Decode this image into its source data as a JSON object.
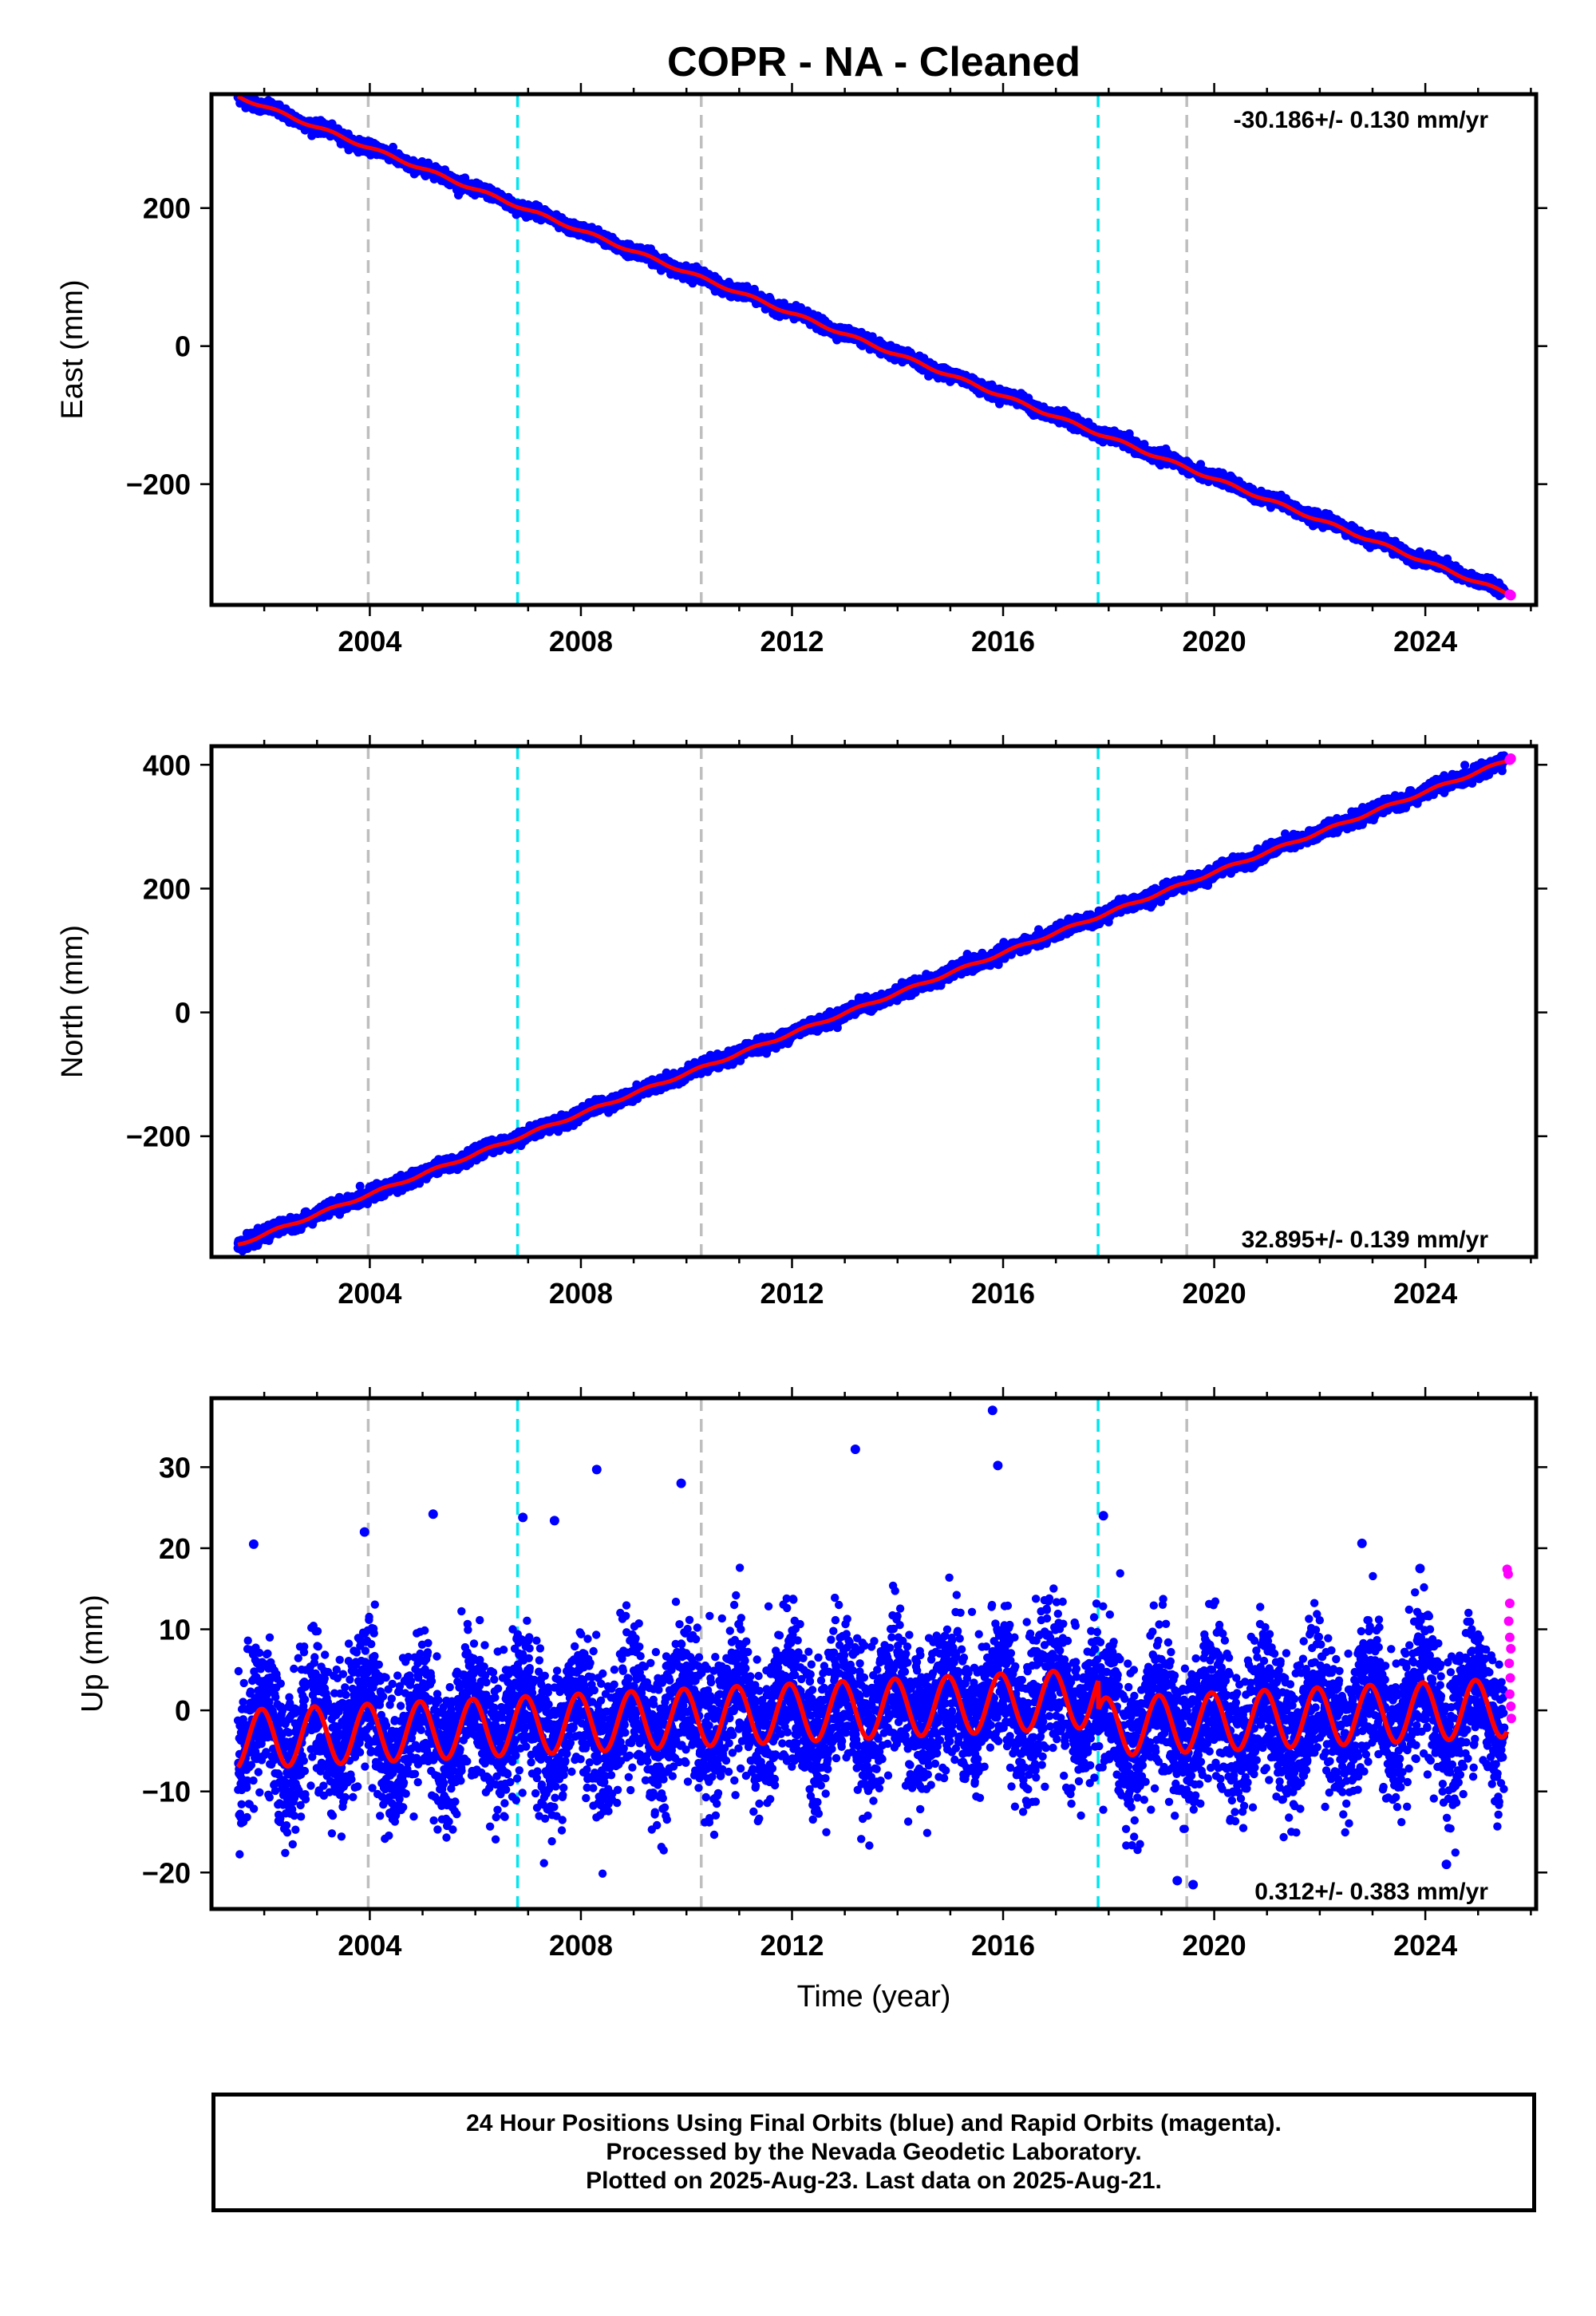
{
  "title": "COPR  - NA - Cleaned",
  "caption": [
    "24 Hour Positions Using Final Orbits (blue) and Rapid Orbits (magenta).",
    "Processed by the Nevada Geodetic Laboratory.",
    "Plotted on 2025-Aug-23. Last data on 2025-Aug-21."
  ],
  "colors": {
    "final_orbits": "#0000ff",
    "rapid_orbits": "#ff00ff",
    "model_fit": "#ff0000",
    "event_cyan": "#00e5ee",
    "event_gray": "#bebebe"
  },
  "chart_data": [
    {
      "type": "scatter",
      "panel": "east",
      "ylabel": "East (mm)",
      "xlabel": "",
      "xlim": [
        2001.0,
        2026.1
      ],
      "ylim": [
        -375,
        365
      ],
      "xticks": [
        2004,
        2008,
        2012,
        2016,
        2020,
        2024
      ],
      "yticks": [
        -200,
        0,
        200
      ],
      "annotation": "-30.186+/- 0.130 mm/yr",
      "annotation_position": "top-right",
      "velocity": -30.186,
      "sigma": 0.13,
      "series": [
        {
          "role": "final_orbits",
          "start": [
            2001.5,
            362
          ],
          "end": [
            2025.5,
            -355
          ],
          "scatter": 4
        },
        {
          "role": "model_fit",
          "points": [
            [
              2001.5,
              362
            ],
            [
              2025.6,
              -360
            ]
          ]
        },
        {
          "role": "rapid_orbits",
          "points": [
            [
              2025.6,
              -360
            ],
            [
              2025.62,
              -361
            ]
          ]
        }
      ],
      "vlines": [
        {
          "x": 2003.97,
          "color": "gray"
        },
        {
          "x": 2006.8,
          "color": "cyan"
        },
        {
          "x": 2010.28,
          "color": "gray"
        },
        {
          "x": 2017.8,
          "color": "cyan"
        },
        {
          "x": 2019.48,
          "color": "gray"
        }
      ]
    },
    {
      "type": "scatter",
      "panel": "north",
      "ylabel": "North (mm)",
      "xlabel": "",
      "xlim": [
        2001.0,
        2026.1
      ],
      "ylim": [
        -395,
        430
      ],
      "xticks": [
        2004,
        2008,
        2012,
        2016,
        2020,
        2024
      ],
      "yticks": [
        -200,
        0,
        200,
        400
      ],
      "annotation": "32.895+/- 0.139 mm/yr",
      "annotation_position": "bottom-right",
      "velocity": 32.895,
      "sigma": 0.139,
      "series": [
        {
          "role": "final_orbits",
          "start": [
            2001.5,
            -375
          ],
          "end": [
            2025.5,
            405
          ],
          "scatter": 5
        },
        {
          "role": "model_fit",
          "points": [
            [
              2001.5,
              -375
            ],
            [
              2025.6,
              408
            ]
          ]
        },
        {
          "role": "rapid_orbits",
          "points": [
            [
              2025.6,
              408
            ],
            [
              2025.62,
              410
            ]
          ]
        }
      ],
      "vlines": [
        {
          "x": 2003.97,
          "color": "gray"
        },
        {
          "x": 2006.8,
          "color": "cyan"
        },
        {
          "x": 2010.28,
          "color": "gray"
        },
        {
          "x": 2017.8,
          "color": "cyan"
        },
        {
          "x": 2019.48,
          "color": "gray"
        }
      ]
    },
    {
      "type": "scatter",
      "panel": "up",
      "ylabel": "Up (mm)",
      "xlabel": "Time (year)",
      "xlim": [
        2001.0,
        2026.1
      ],
      "ylim": [
        -24.5,
        38.5
      ],
      "xticks": [
        2004,
        2008,
        2012,
        2016,
        2020,
        2024
      ],
      "yticks": [
        -20,
        -10,
        0,
        10,
        20,
        30
      ],
      "annotation": "0.312+/- 0.383 mm/yr",
      "annotation_position": "bottom-right",
      "velocity": 0.312,
      "sigma": 0.383,
      "annual_amplitude": 3.6,
      "offset_after_2017_8": -3.6,
      "scatter_sigma": 4.5,
      "outliers": [
        [
          2015.8,
          37.0
        ],
        [
          2013.2,
          32.2
        ],
        [
          2015.9,
          30.2
        ],
        [
          2008.3,
          29.7
        ],
        [
          2009.9,
          28.0
        ],
        [
          2005.2,
          24.2
        ],
        [
          2017.9,
          24.0
        ],
        [
          2006.9,
          23.8
        ],
        [
          2007.5,
          23.4
        ],
        [
          2003.9,
          22.0
        ],
        [
          2022.8,
          20.6
        ],
        [
          2001.8,
          20.5
        ],
        [
          2023.9,
          17.5
        ],
        [
          2019.3,
          -21.0
        ],
        [
          2019.6,
          -21.5
        ],
        [
          2024.4,
          -19.0
        ]
      ],
      "rapid_orbits": [
        [
          2025.55,
          17.4
        ],
        [
          2025.57,
          16.8
        ],
        [
          2025.6,
          13.2
        ],
        [
          2025.58,
          11.0
        ],
        [
          2025.6,
          9.0
        ],
        [
          2025.62,
          7.6
        ],
        [
          2025.59,
          5.8
        ],
        [
          2025.61,
          4.0
        ],
        [
          2025.6,
          2.0
        ],
        [
          2025.62,
          0.5
        ],
        [
          2025.63,
          -1.0
        ]
      ],
      "vlines": [
        {
          "x": 2003.97,
          "color": "gray"
        },
        {
          "x": 2006.8,
          "color": "cyan"
        },
        {
          "x": 2010.28,
          "color": "gray"
        },
        {
          "x": 2017.8,
          "color": "cyan"
        },
        {
          "x": 2019.48,
          "color": "gray"
        }
      ]
    }
  ]
}
